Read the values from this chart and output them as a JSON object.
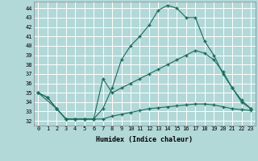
{
  "xlabel": "Humidex (Indice chaleur)",
  "background_color": "#b2d8d8",
  "grid_color": "#ffffff",
  "line_color": "#1a6b5a",
  "xlim": [
    -0.5,
    23.5
  ],
  "ylim": [
    31.5,
    44.7
  ],
  "yticks": [
    32,
    33,
    34,
    35,
    36,
    37,
    38,
    39,
    40,
    41,
    42,
    43,
    44
  ],
  "xticks": [
    0,
    1,
    2,
    3,
    4,
    5,
    6,
    7,
    8,
    9,
    10,
    11,
    12,
    13,
    14,
    15,
    16,
    17,
    18,
    19,
    20,
    21,
    22,
    23
  ],
  "xtick_labels": [
    "0",
    "1",
    "2",
    "3",
    "4",
    "5",
    "6",
    "7",
    "8",
    "9",
    "10",
    "11",
    "12",
    "13",
    "14",
    "15",
    "16",
    "17",
    "18",
    "19",
    "20",
    "21",
    "22",
    "23"
  ],
  "series": [
    {
      "x": [
        0,
        1,
        2,
        3,
        4,
        5,
        6,
        7,
        8,
        9,
        10,
        11,
        12,
        13,
        14,
        15,
        16,
        17,
        18,
        19,
        20,
        21,
        22,
        23
      ],
      "y": [
        35.0,
        34.5,
        33.3,
        32.2,
        32.2,
        32.2,
        32.2,
        33.3,
        35.5,
        38.5,
        40.0,
        41.0,
        42.2,
        43.8,
        44.3,
        44.0,
        43.0,
        43.0,
        40.5,
        39.0,
        37.0,
        35.5,
        34.0,
        33.3
      ]
    },
    {
      "x": [
        0,
        2,
        3,
        4,
        5,
        6,
        7,
        8,
        9,
        10,
        11,
        12,
        13,
        14,
        15,
        16,
        17,
        18,
        19,
        20,
        21,
        22,
        23
      ],
      "y": [
        35.0,
        33.3,
        32.2,
        32.2,
        32.2,
        32.2,
        36.5,
        35.0,
        35.5,
        36.0,
        36.5,
        37.0,
        37.5,
        38.0,
        38.5,
        39.0,
        39.5,
        39.2,
        38.5,
        37.2,
        35.5,
        34.2,
        33.3
      ]
    },
    {
      "x": [
        0,
        1,
        2,
        3,
        4,
        5,
        6,
        7,
        8,
        9,
        10,
        11,
        12,
        13,
        14,
        15,
        16,
        17,
        18,
        19,
        20,
        21,
        22,
        23
      ],
      "y": [
        35.0,
        34.5,
        33.3,
        32.2,
        32.2,
        32.2,
        32.2,
        32.2,
        32.5,
        32.7,
        32.9,
        33.1,
        33.3,
        33.4,
        33.5,
        33.6,
        33.7,
        33.8,
        33.8,
        33.7,
        33.5,
        33.3,
        33.2,
        33.1
      ]
    }
  ]
}
